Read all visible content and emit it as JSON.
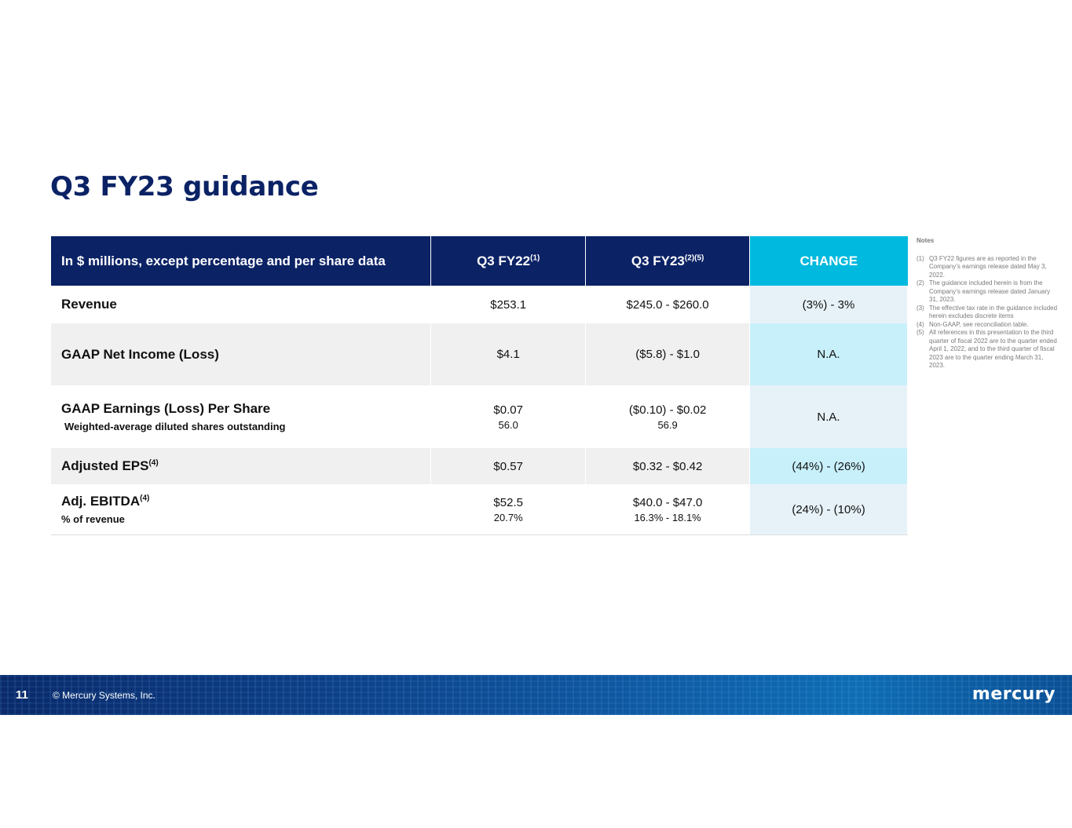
{
  "title": "Q3 FY23 guidance",
  "table": {
    "header": {
      "label": "In $ millions, except percentage and per share data",
      "col1": "Q3 FY22",
      "col1_sup": "(1)",
      "col2": "Q3 FY23",
      "col2_sup": "(2)(5)",
      "col3": "CHANGE"
    },
    "rows": [
      {
        "label": "Revenue",
        "fy22": "$253.1",
        "fy23": "$245.0 - $260.0",
        "change": "(3%) - 3%"
      },
      {
        "label": "GAAP Net Income (Loss)",
        "fy22": "$4.1",
        "fy23": "($5.8) - $1.0",
        "change": "N.A."
      },
      {
        "label": "GAAP Earnings (Loss) Per Share",
        "sublabel": "Weighted-average diluted shares outstanding",
        "fy22": "$0.07",
        "fy22_sub": "56.0",
        "fy23": "($0.10) - $0.02",
        "fy23_sub": "56.9",
        "change": "N.A."
      },
      {
        "label": "Adjusted EPS",
        "label_sup": "(4)",
        "fy22": "$0.57",
        "fy23": "$0.32 - $0.42",
        "change": "(44%) - (26%)"
      },
      {
        "label": "Adj. EBITDA",
        "label_sup": "(4)",
        "sublabel": "% of revenue",
        "fy22": "$52.5",
        "fy22_sub": "20.7%",
        "fy23": "$40.0 - $47.0",
        "fy23_sub": "16.3% - 18.1%",
        "change": "(24%) - (10%)"
      }
    ]
  },
  "notes": {
    "title": "Notes",
    "items": [
      {
        "num": "(1)",
        "text": "Q3 FY22 figures are as reported in the Company’s earnings release dated May 3, 2022."
      },
      {
        "num": "(2)",
        "text": "The guidance included herein is from the Company’s earnings release dated January 31, 2023."
      },
      {
        "num": "(3)",
        "text": "The effective tax rate in the guidance included herein excludes discrete items"
      },
      {
        "num": "(4)",
        "text": "Non-GAAP, see reconciliation table."
      },
      {
        "num": "(5)",
        "text": "All references in this presentation to the third quarter of fiscal 2022 are to the quarter ended April 1, 2022, and to the third quarter of fiscal 2023 are to the quarter ending March 31, 2023."
      }
    ]
  },
  "footer": {
    "page_number": "11",
    "copyright": "© Mercury Systems, Inc.",
    "logo_text": "mercury"
  },
  "colors": {
    "navy": "#0b2265",
    "cyan": "#00b9de",
    "change_light": "#e7f2f8",
    "change_cyan": "#c8f0fb",
    "row_grey": "#f1f0f0"
  }
}
